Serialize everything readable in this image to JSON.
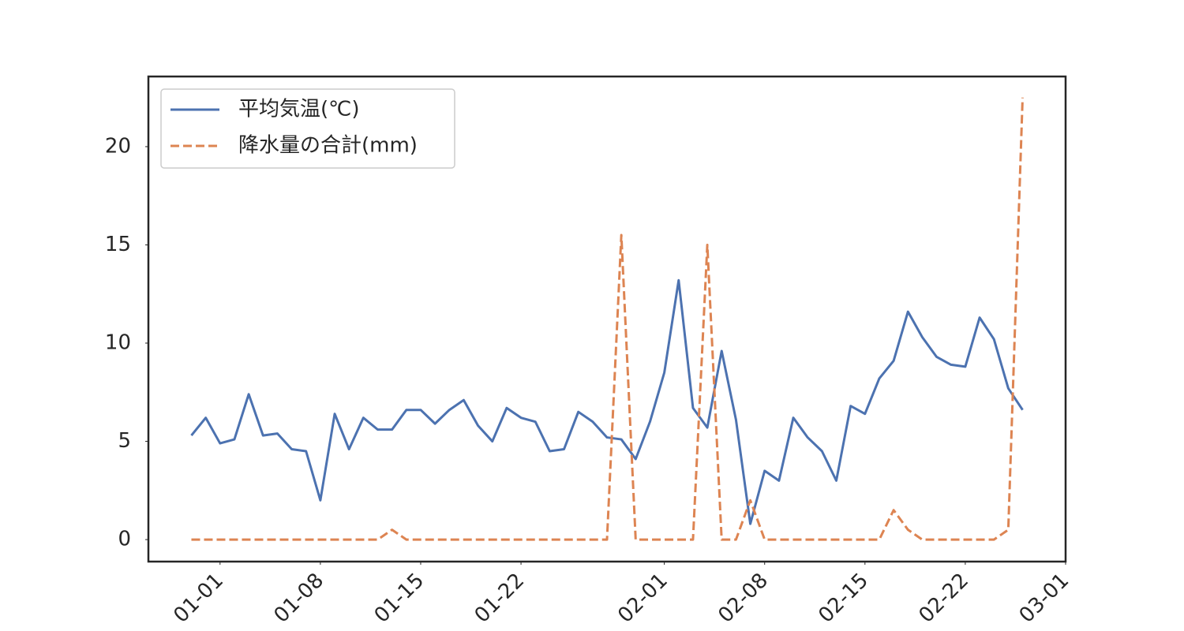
{
  "chart_data": {
    "type": "line",
    "x": [
      "12-30",
      "12-31",
      "01-01",
      "01-02",
      "01-03",
      "01-04",
      "01-05",
      "01-06",
      "01-07",
      "01-08",
      "01-09",
      "01-10",
      "01-11",
      "01-12",
      "01-13",
      "01-14",
      "01-15",
      "01-16",
      "01-17",
      "01-18",
      "01-19",
      "01-20",
      "01-21",
      "01-22",
      "01-23",
      "01-24",
      "01-25",
      "01-26",
      "01-27",
      "01-28",
      "01-29",
      "01-30",
      "01-31",
      "02-01",
      "02-02",
      "02-03",
      "02-04",
      "02-05",
      "02-06",
      "02-07",
      "02-08",
      "02-09",
      "02-10",
      "02-11",
      "02-12",
      "02-13",
      "02-14",
      "02-15",
      "02-16",
      "02-17",
      "02-18",
      "02-19",
      "02-20",
      "02-21",
      "02-22",
      "02-23",
      "02-24",
      "02-25",
      "02-26"
    ],
    "series": [
      {
        "name": "平均気温(℃)",
        "color": "#4c72b0",
        "linestyle": "solid",
        "values": [
          5.3,
          6.2,
          4.9,
          5.1,
          7.4,
          5.3,
          5.4,
          4.6,
          4.5,
          2.0,
          6.4,
          4.6,
          6.2,
          5.6,
          5.6,
          6.6,
          6.6,
          5.9,
          6.6,
          7.1,
          5.8,
          5.0,
          6.7,
          6.2,
          6.0,
          4.5,
          4.6,
          6.5,
          6.0,
          5.2,
          5.1,
          4.1,
          6.0,
          8.5,
          13.2,
          6.7,
          5.7,
          9.6,
          6.1,
          0.8,
          3.5,
          3.0,
          6.2,
          5.2,
          4.5,
          3.0,
          6.8,
          6.4,
          8.2,
          9.1,
          11.6,
          10.3,
          9.3,
          8.9,
          8.8,
          11.3,
          10.2,
          7.7,
          6.6
        ]
      },
      {
        "name": "降水量の合計(mm)",
        "color": "#dd8452",
        "linestyle": "dashed",
        "values": [
          0,
          0,
          0,
          0,
          0,
          0,
          0,
          0,
          0,
          0,
          0,
          0,
          0,
          0,
          0.5,
          0,
          0,
          0,
          0,
          0,
          0,
          0,
          0,
          0,
          0,
          0,
          0,
          0,
          0,
          0,
          15.5,
          0,
          0,
          0,
          0,
          0,
          15.0,
          0,
          0,
          2.0,
          0,
          0,
          0,
          0,
          0,
          0,
          0,
          0,
          0,
          1.5,
          0.5,
          0,
          0,
          0,
          0,
          0,
          0,
          0.5,
          22.5
        ]
      }
    ],
    "xlim": [
      "12-27",
      "03-01"
    ],
    "xticks": [
      "01-01",
      "01-08",
      "01-15",
      "01-22",
      "02-01",
      "02-08",
      "02-15",
      "02-22",
      "03-01"
    ],
    "ylim": [
      -1.12,
      23.57
    ],
    "yticks": [
      0,
      5,
      10,
      15,
      20
    ],
    "grid": false,
    "legend": "upper left"
  }
}
